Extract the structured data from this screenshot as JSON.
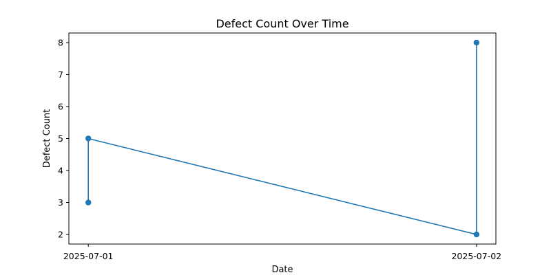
{
  "chart_data": {
    "type": "line",
    "title": "Defect Count Over Time",
    "xlabel": "Date",
    "ylabel": "Defect Count",
    "x_ticks": [
      "2025-07-01",
      "2025-07-02"
    ],
    "y_ticks": [
      2,
      3,
      4,
      5,
      6,
      7,
      8
    ],
    "xlim": [
      "2025-06-30T22:48",
      "2025-07-02T01:12"
    ],
    "ylim": [
      1.7,
      8.3
    ],
    "grid": false,
    "series": [
      {
        "color": "#1f77b4",
        "marker": "circle",
        "points": [
          {
            "x": "2025-07-01",
            "y": 3
          },
          {
            "x": "2025-07-01",
            "y": 5
          },
          {
            "x": "2025-07-02",
            "y": 2
          },
          {
            "x": "2025-07-02",
            "y": 8
          }
        ]
      }
    ]
  }
}
